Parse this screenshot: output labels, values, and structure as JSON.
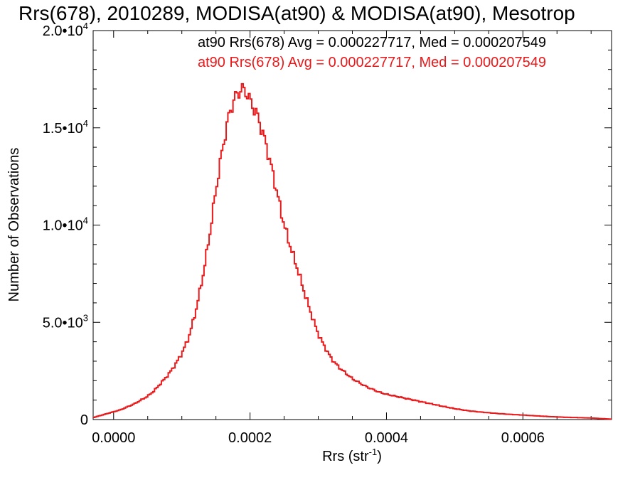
{
  "chart_data": {
    "type": "line",
    "title": "Rrs(678), 2010289, MODISA(at90) & MODISA(at90), Mesotrop",
    "xlabel": "Rrs (str",
    "xlabel_sup": "-1",
    "xlabel_close": ")",
    "ylabel": "Number of Observations",
    "xlim": [
      -3e-05,
      0.00073
    ],
    "ylim": [
      0,
      20000
    ],
    "x_ticks": [
      {
        "value": 0.0,
        "label": "0.0000"
      },
      {
        "value": 0.0002,
        "label": "0.0002"
      },
      {
        "value": 0.0004,
        "label": "0.0004"
      },
      {
        "value": 0.0006,
        "label": "0.0006"
      }
    ],
    "y_ticks": [
      {
        "value": 0,
        "label": "0",
        "sup": ""
      },
      {
        "value": 5000,
        "label": "5.0•10",
        "sup": "3"
      },
      {
        "value": 10000,
        "label": "1.0•10",
        "sup": "4"
      },
      {
        "value": 15000,
        "label": "1.5•10",
        "sup": "4"
      },
      {
        "value": 20000,
        "label": "2.0•10",
        "sup": "4"
      }
    ],
    "annotations": [
      {
        "text": "at90 Rrs(678) Avg = 0.000227717, Med = 0.000207549",
        "color": "#000000"
      },
      {
        "text": "at90 Rrs(678) Avg = 0.000227717, Med = 0.000207549",
        "color": "#e8191b"
      }
    ],
    "series": [
      {
        "color": "#e8191b",
        "x": [
          -3e-05,
          -2e-05,
          -1e-05,
          0.0,
          1e-05,
          2e-05,
          3e-05,
          4e-05,
          5e-05,
          6e-05,
          7e-05,
          8e-05,
          9e-05,
          0.0001,
          0.00011,
          0.00012,
          0.00013,
          0.00014,
          0.00015,
          0.00016,
          0.00017,
          0.00018,
          0.000185,
          0.00019,
          0.000195,
          0.0002,
          0.00021,
          0.00022,
          0.00023,
          0.00024,
          0.00025,
          0.00026,
          0.00027,
          0.00028,
          0.00029,
          0.0003,
          0.00031,
          0.00032,
          0.00033,
          0.00034,
          0.00035,
          0.00036,
          0.00037,
          0.00038,
          0.00039,
          0.0004,
          0.00042,
          0.00044,
          0.00046,
          0.00048,
          0.0005,
          0.00052,
          0.00054,
          0.00056,
          0.00058,
          0.0006,
          0.00062,
          0.00064,
          0.00066,
          0.00068,
          0.0007,
          0.00072,
          0.00073
        ],
        "y": [
          100,
          200,
          300,
          400,
          500,
          650,
          800,
          1000,
          1200,
          1500,
          1900,
          2300,
          2800,
          3400,
          4200,
          5500,
          7200,
          9300,
          11800,
          14000,
          15800,
          16700,
          16900,
          17000,
          16800,
          16400,
          15700,
          14600,
          13200,
          11600,
          10000,
          8800,
          7700,
          6500,
          5400,
          4400,
          3700,
          3100,
          2700,
          2400,
          2100,
          1900,
          1700,
          1550,
          1400,
          1300,
          1150,
          1000,
          850,
          700,
          560,
          450,
          380,
          320,
          270,
          230,
          190,
          150,
          120,
          100,
          80,
          40,
          20
        ]
      }
    ]
  }
}
